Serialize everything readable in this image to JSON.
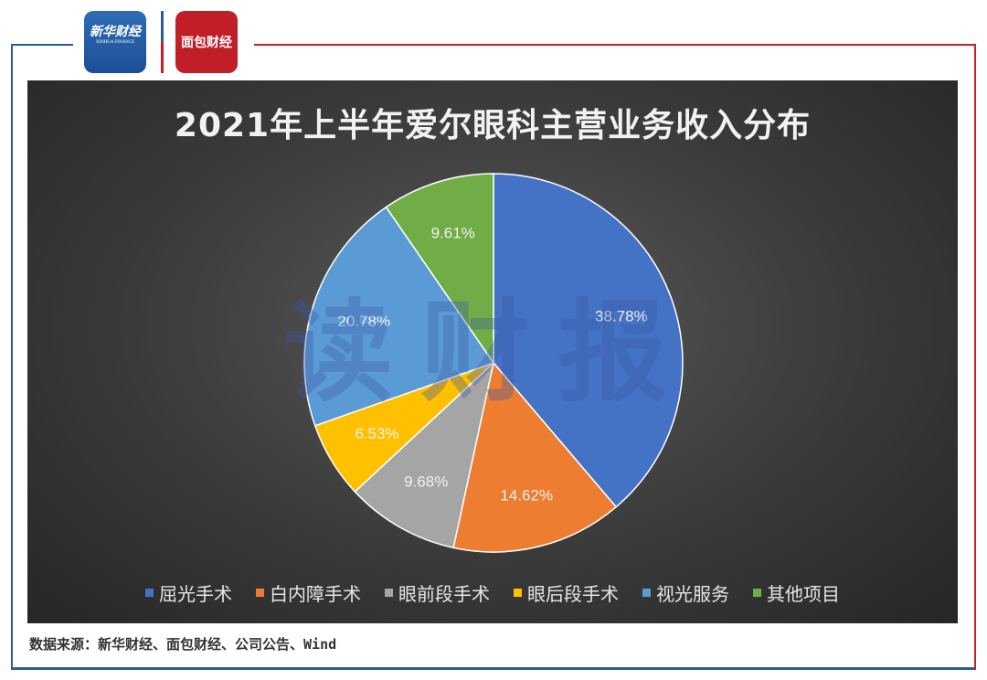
{
  "header": {
    "logo_xinhua": "新华财经",
    "logo_xinhua_en": "XINHUA FINANCE",
    "logo_mianbao": "面包财经"
  },
  "watermark": "读财报",
  "chart_data": {
    "type": "pie",
    "title": "2021年上半年爱尔眼科主营业务收入分布",
    "categories": [
      "屈光手术",
      "白内障手术",
      "眼前段手术",
      "眼后段手术",
      "视光服务",
      "其他项目"
    ],
    "values": [
      38.78,
      14.62,
      9.68,
      6.53,
      20.78,
      9.61
    ],
    "labels": [
      "38.78%",
      "14.62%",
      "9.68%",
      "6.53%",
      "20.78%",
      "9.61%"
    ],
    "colors": [
      "#4472c4",
      "#ed7d31",
      "#a5a5a5",
      "#ffc000",
      "#5b9bd5",
      "#70ad47"
    ],
    "legend": "bottom",
    "start": "top, clockwise"
  },
  "source": "数据来源：新华财经、面包财经、公司公告、Wind"
}
